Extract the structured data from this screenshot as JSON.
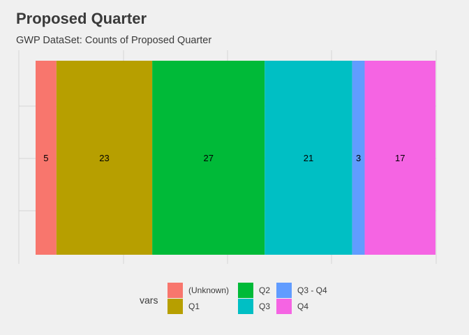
{
  "chart_data": {
    "type": "bar",
    "orientation": "horizontal-stacked",
    "title": "Proposed Quarter",
    "subtitle": "GWP DataSet: Counts of Proposed Quarter",
    "legend_title": "vars",
    "legend_position": "bottom",
    "grid": true,
    "series": [
      {
        "name": "(Unknown)",
        "value": 5,
        "label": "5",
        "color": "#F8766D"
      },
      {
        "name": "Q1",
        "value": 23,
        "label": "23",
        "color": "#B79F00"
      },
      {
        "name": "Q2",
        "value": 27,
        "label": "27",
        "color": "#00BA38"
      },
      {
        "name": "Q3",
        "value": 21,
        "label": "21",
        "color": "#00BFC4"
      },
      {
        "name": "Q3 - Q4",
        "value": 3,
        "label": "3",
        "color": "#619CFF"
      },
      {
        "name": "Q4",
        "value": 17,
        "label": "17",
        "color": "#F564E3"
      }
    ]
  }
}
